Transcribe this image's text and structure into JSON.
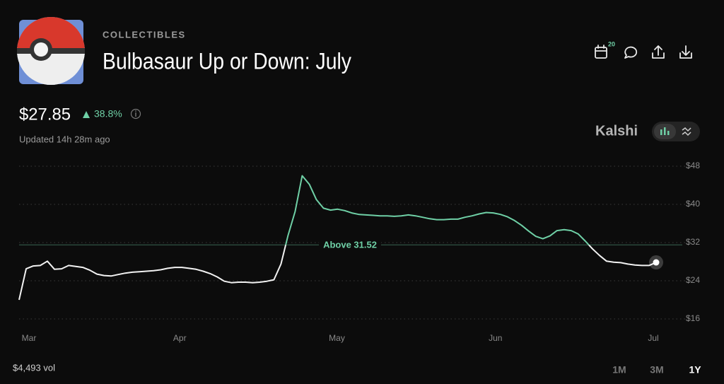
{
  "header": {
    "category": "COLLECTIBLES",
    "title": "Bulbasaur Up or Down: July",
    "calendar_badge": "20"
  },
  "price": {
    "value": "$27.85",
    "change": "38.8%",
    "updated": "Updated 14h 28m ago"
  },
  "brand": "Kalshi",
  "footer": {
    "volume": "$4,493 vol",
    "ranges": [
      "1M",
      "3M",
      "1Y"
    ]
  },
  "chart_data": {
    "type": "line",
    "series": [
      {
        "name": "Bulbasaur",
        "color": "#f2f2f2",
        "values": [
          20.0,
          26.5,
          27.1,
          27.2,
          28.1,
          26.4,
          26.5,
          27.2,
          27.0,
          26.8,
          26.2,
          25.4,
          25.1,
          25.0,
          25.3,
          25.6,
          25.8,
          25.9,
          26.0,
          26.1,
          26.3,
          26.6,
          26.8,
          26.8,
          26.6,
          26.4,
          26.0,
          25.5,
          24.8,
          23.9,
          23.6,
          23.7,
          23.7,
          23.6,
          23.7,
          23.9,
          24.2,
          27.5,
          33.5,
          38.5,
          46.0,
          44.2,
          41.0,
          39.2,
          38.8,
          39.0,
          38.7,
          38.2,
          37.9,
          37.8,
          37.7,
          37.6,
          37.6,
          37.5,
          37.6,
          37.8,
          37.6,
          37.3,
          37.0,
          36.8,
          36.8,
          36.9,
          36.9,
          37.3,
          37.6,
          38.0,
          38.3,
          38.2,
          37.9,
          37.4,
          36.6,
          35.6,
          34.4,
          33.3,
          32.8,
          33.4,
          34.5,
          34.7,
          34.5,
          33.8,
          32.3,
          30.7,
          29.3,
          28.1,
          27.9,
          27.8,
          27.5,
          27.3,
          27.2,
          27.2,
          27.85
        ]
      }
    ],
    "xlim": [
      0,
      90
    ],
    "xticks": [
      {
        "value": 1.4,
        "label": "Mar"
      },
      {
        "value": 22.7,
        "label": "Apr"
      },
      {
        "value": 44.9,
        "label": "May"
      },
      {
        "value": 67.3,
        "label": "Jun"
      },
      {
        "value": 89.6,
        "label": "Jul"
      }
    ],
    "ylim": [
      16,
      48
    ],
    "yticks": [
      {
        "value": 16,
        "label": "$16"
      },
      {
        "value": 24,
        "label": "$24"
      },
      {
        "value": 32,
        "label": "$32"
      },
      {
        "value": 40,
        "label": "$40"
      },
      {
        "value": 48,
        "label": "$48"
      }
    ],
    "grid": true,
    "reference_line": {
      "value": 31.52,
      "label": "Above 31.52",
      "color": "#6fd0a6"
    }
  }
}
